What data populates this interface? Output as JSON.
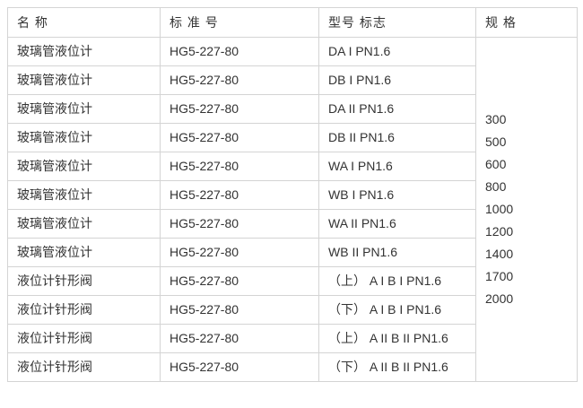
{
  "table": {
    "headers": [
      "名 称",
      "标 准 号",
      "型号 标志",
      "规 格"
    ],
    "rows": [
      {
        "name": "玻璃管液位计",
        "standard": "HG5-227-80",
        "model": "DA I PN1.6"
      },
      {
        "name": "玻璃管液位计",
        "standard": "HG5-227-80",
        "model": "DB I PN1.6"
      },
      {
        "name": "玻璃管液位计",
        "standard": "HG5-227-80",
        "model": "DA II PN1.6"
      },
      {
        "name": "玻璃管液位计",
        "standard": "HG5-227-80",
        "model": "DB II PN1.6"
      },
      {
        "name": "玻璃管液位计",
        "standard": "HG5-227-80",
        "model": "WA I PN1.6"
      },
      {
        "name": "玻璃管液位计",
        "standard": "HG5-227-80",
        "model": "WB I PN1.6"
      },
      {
        "name": "玻璃管液位计",
        "standard": "HG5-227-80",
        "model": "WA II PN1.6"
      },
      {
        "name": "玻璃管液位计",
        "standard": "HG5-227-80",
        "model": "WB II PN1.6"
      },
      {
        "name": "液位计针形阀",
        "standard": "HG5-227-80",
        "model": "（上） A I B I PN1.6"
      },
      {
        "name": "液位计针形阀",
        "standard": "HG5-227-80",
        "model": "（下） A I B I PN1.6"
      },
      {
        "name": "液位计针形阀",
        "standard": "HG5-227-80",
        "model": "（上） A II B II PN1.6"
      },
      {
        "name": "液位计针形阀",
        "standard": "HG5-227-80",
        "model": "（下） A II B II PN1.6"
      }
    ],
    "specs": [
      "300",
      "500",
      "600",
      "800",
      "1000",
      "1200",
      "1400",
      "1700",
      "2000"
    ]
  },
  "colors": {
    "border": "#d4d4d4",
    "text": "#333333",
    "background": "#ffffff"
  }
}
